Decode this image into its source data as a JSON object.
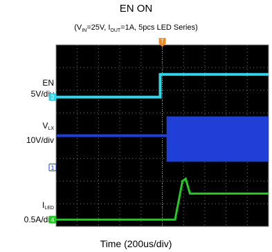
{
  "chart_data": {
    "type": "line",
    "title": "EN ON",
    "subtitle": "(VIN=25V, IOUT=1A, 5pcs LED Series)",
    "subtitle_parts": {
      "open": "(V",
      "sub1": "IN",
      "mid1": "=25V, I",
      "sub2": "OUT",
      "mid2": "=1A, 5pcs LED Series)"
    },
    "xlabel": "Time (200us/div)",
    "grid": true,
    "divisions": {
      "x": 10,
      "y": 8
    },
    "background": "#000000",
    "trigger_marker": "T",
    "channel_markers": [
      {
        "id": "2",
        "color": "#33d6e8",
        "division": 2.3
      },
      {
        "id": "1",
        "color": "#1f3fd6",
        "division": 5.4
      },
      {
        "id": "4",
        "color": "#22cc22",
        "division": 7.7
      }
    ],
    "series": [
      {
        "channel": "2",
        "label": {
          "line1": "EN",
          "line2": "5V/div"
        },
        "color": "#33d6e8",
        "unit": "div",
        "x": [
          0,
          4.9,
          4.9,
          10
        ],
        "y": [
          2.3,
          2.3,
          1.3,
          1.3
        ]
      },
      {
        "channel": "1",
        "label": {
          "line1_main": "V",
          "line1_sub": "LX",
          "line2": "10V/div"
        },
        "color": "#1f3fd6",
        "unit": "div",
        "switching_start_div": 5.2,
        "envelope_top_div": 3.15,
        "envelope_bottom_div": 5.15,
        "x": [
          0,
          5.2
        ],
        "y": [
          4.0,
          4.0
        ]
      },
      {
        "channel": "4",
        "label": {
          "line1_main": "I",
          "line1_sub": "LED",
          "line2": "0.5A/div"
        },
        "color": "#22cc22",
        "unit": "div",
        "x": [
          0,
          5.6,
          5.95,
          6.1,
          6.3,
          10
        ],
        "y": [
          7.7,
          7.7,
          6.0,
          5.9,
          6.55,
          6.55
        ]
      }
    ]
  }
}
